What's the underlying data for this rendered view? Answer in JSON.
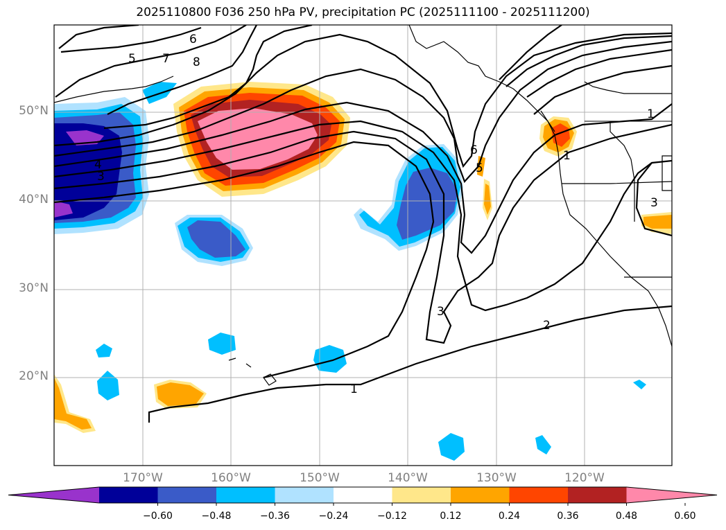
{
  "title": "2025110800 F036 250 hPa PV, precipitation PC (2025111100 - 2025111200)",
  "lat_labels": [
    "50°N",
    "40°N",
    "30°N",
    "20°N"
  ],
  "lon_labels": [
    "170°W",
    "160°W",
    "150°W",
    "140°W",
    "130°W",
    "120°W"
  ],
  "contour_labels": [
    "1",
    "1",
    "1",
    "2",
    "3",
    "3",
    "3",
    "4",
    "5",
    "5",
    "6",
    "6",
    "7",
    "8"
  ],
  "colorbar": {
    "colors": [
      "#9933cc",
      "#000099",
      "#3a5bc8",
      "#00bfff",
      "#b0e2ff",
      "#ffffff",
      "#ffe78a",
      "#ffa500",
      "#ff4500",
      "#b22222",
      "#ff88aa"
    ],
    "ticks": [
      "−0.60",
      "−0.48",
      "−0.36",
      "−0.24",
      "−0.12",
      "0.12",
      "0.24",
      "0.36",
      "0.48",
      "0.60"
    ]
  }
}
